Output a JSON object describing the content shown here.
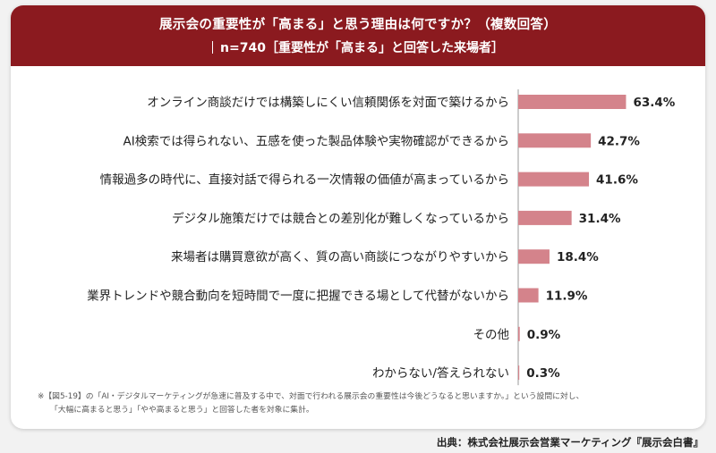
{
  "header": {
    "title": "展示会の重要性が「高まる」と思う理由は何ですか？（複数回答）",
    "subtitle": "n=740［重要性が「高まる」と回答した来場者］"
  },
  "chart_data": {
    "type": "bar",
    "orientation": "horizontal",
    "categories": [
      "オンライン商談だけでは構築しにくい信頼関係を対面で築けるから",
      "AI検索では得られない、五感を使った製品体験や実物確認ができるから",
      "情報過多の時代に、直接対話で得られる一次情報の価値が高まっているから",
      "デジタル施策だけでは競合との差別化が難しくなっているから",
      "来場者は購買意欲が高く、質の高い商談につながりやすいから",
      "業界トレンドや競合動向を短時間で一度に把握できる場として代替がないから",
      "その他",
      "わからない/答えられない"
    ],
    "values": [
      63.4,
      42.7,
      41.6,
      31.4,
      18.4,
      11.9,
      0.9,
      0.3
    ],
    "value_labels": [
      "63.4%",
      "42.7%",
      "41.6%",
      "31.4%",
      "18.4%",
      "11.9%",
      "0.9%",
      "0.3%"
    ],
    "xlim": [
      0,
      100
    ],
    "grid": false,
    "bar_color": "#d4838b"
  },
  "notes": {
    "line1": "※【図5-19】の「AI・デジタルマーケティングが急速に普及する中で、対面で行われる展示会の重要性は今後どうなると思いますか。」という設問に対し、",
    "line2": "「大幅に高まると思う」「やや高まると思う」と回答した者を対象に集計。"
  },
  "source": "出典：株式会社展示会営業マーケティング『展示会白書』",
  "colors": {
    "header_bg": "#8b1a1f",
    "bar": "#d4838b",
    "axis": "#999999"
  }
}
